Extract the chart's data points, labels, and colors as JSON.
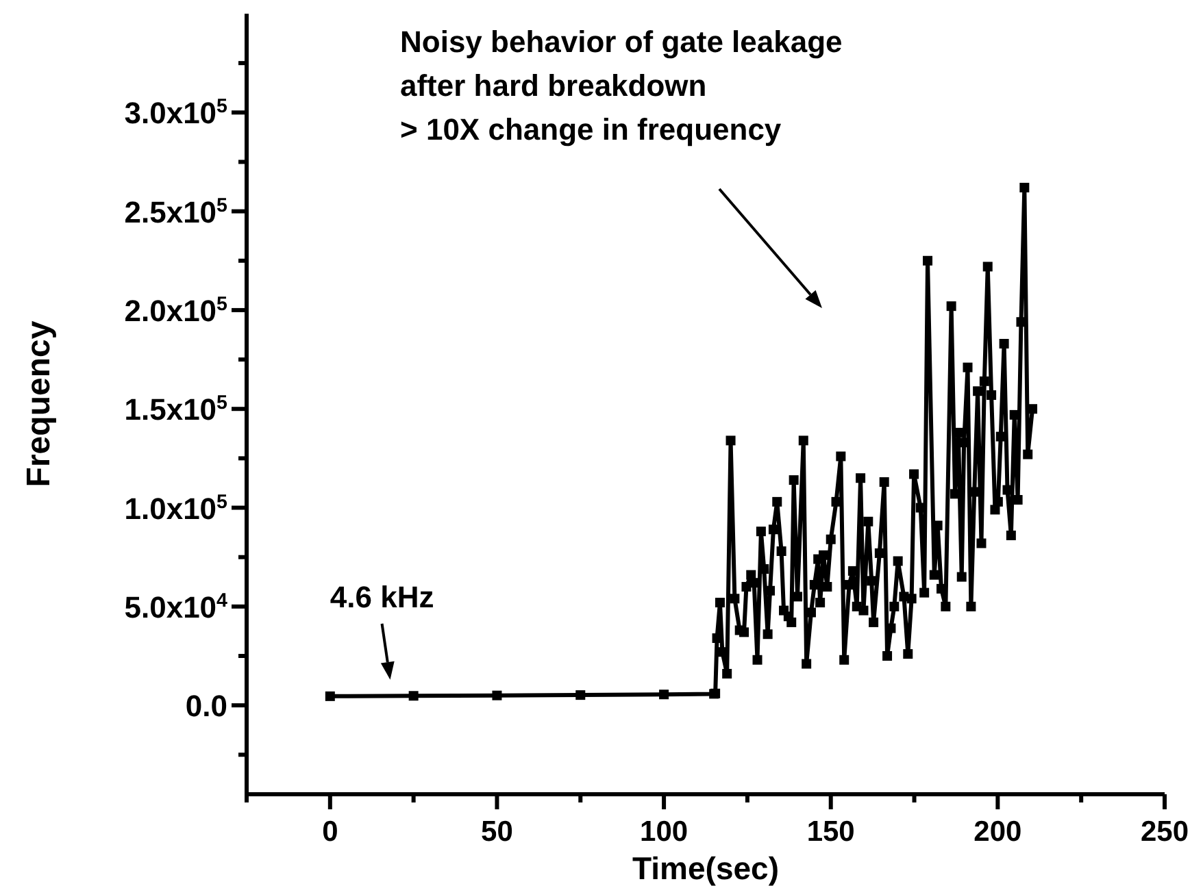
{
  "chart_data": {
    "type": "line",
    "xlabel": "Time(sec)",
    "ylabel": "Frequency",
    "annotations": [
      {
        "text": "4.6 kHz",
        "x": 18,
        "y": 4600
      },
      "Noisy behavior of gate leakage\nafter hard breakdown\n> 10X change in frequency"
    ],
    "xlim": [
      -25,
      250
    ],
    "ylim": [
      -45000,
      350000
    ],
    "xticks": [
      {
        "value": -25,
        "label": null
      },
      0,
      {
        "value": 25,
        "label": null
      },
      50,
      {
        "value": 75,
        "label": null
      },
      100,
      {
        "value": 125,
        "label": null
      },
      150,
      {
        "value": 175,
        "label": null
      },
      200,
      {
        "value": 225,
        "label": null
      },
      250
    ],
    "yticks": [
      {
        "value": -25000,
        "label": null
      },
      {
        "value": 0,
        "label": "0.0"
      },
      {
        "value": 25000,
        "label": null
      },
      {
        "value": 50000,
        "label": "5.0x10$^{4}$"
      },
      {
        "value": 75000,
        "label": null
      },
      {
        "value": 100000,
        "label": "1.0x10$^{5}$"
      },
      {
        "value": 125000,
        "label": null
      },
      {
        "value": 150000,
        "label": "1.5x10$^{5}$"
      },
      {
        "value": 175000,
        "label": null
      },
      {
        "value": 200000,
        "label": "2.0x10$^{5}$"
      },
      {
        "value": 225000,
        "label": null
      },
      {
        "value": 250000,
        "label": "2.5x10$^{5}$"
      },
      {
        "value": 275000,
        "label": null
      },
      {
        "value": 300000,
        "label": "3.0x10$^{5}$"
      },
      {
        "value": 325000,
        "label": null
      }
    ],
    "grid": false,
    "marker": "square",
    "line_style": "solid",
    "series": [
      {
        "color": "#000000",
        "x": [
          0,
          25,
          50,
          75,
          100,
          115,
          115.4,
          115.9,
          116.8,
          117.5,
          118.9,
          120,
          121.2,
          122.7,
          124,
          124.7,
          126.1,
          127,
          128,
          129.1,
          130,
          131.1,
          131.8,
          132.8,
          133.9,
          135.2,
          135.9,
          137.3,
          138.2,
          138.9,
          140,
          141.8,
          142.7,
          144.1,
          145.1,
          146.2,
          146.8,
          147.8,
          148.9,
          150,
          151.6,
          153,
          154,
          155.5,
          156.6,
          157.8,
          158.9,
          159.8,
          161.2,
          162.2,
          162.8,
          164.6,
          166,
          166.9,
          168,
          169,
          170.1,
          171.9,
          173.1,
          174.2,
          174.9,
          176.9,
          178,
          179,
          181,
          182,
          183.1,
          184.4,
          186.1,
          187.2,
          188.2,
          189.2,
          189.9,
          191,
          192,
          193,
          194,
          195.1,
          196,
          197,
          198.1,
          199.2,
          200.1,
          200.9,
          201.9,
          202.9,
          204,
          205,
          206,
          207,
          208,
          209,
          210.4
        ],
        "values": [
          4600,
          4800,
          5000,
          5200,
          5500,
          5800,
          6000,
          34000,
          52000,
          27000,
          16000,
          134000,
          54000,
          38000,
          37000,
          60000,
          66000,
          62000,
          23000,
          88000,
          69000,
          36000,
          58000,
          89000,
          103000,
          78000,
          48000,
          45000,
          42000,
          114000,
          55000,
          134000,
          21000,
          47000,
          61000,
          74000,
          52000,
          76000,
          60000,
          84000,
          103000,
          126000,
          23000,
          61000,
          68000,
          50000,
          115000,
          48000,
          93000,
          63000,
          42000,
          77000,
          113000,
          25000,
          39000,
          50000,
          73000,
          55000,
          26000,
          54000,
          117000,
          100000,
          57000,
          225000,
          66000,
          91000,
          59000,
          50000,
          202000,
          107000,
          138000,
          65000,
          133000,
          171000,
          50000,
          108000,
          159000,
          82000,
          164000,
          222000,
          157000,
          99000,
          103000,
          136000,
          183000,
          109000,
          86000,
          147000,
          104000,
          194000,
          262000,
          127000,
          150000
        ]
      }
    ]
  }
}
